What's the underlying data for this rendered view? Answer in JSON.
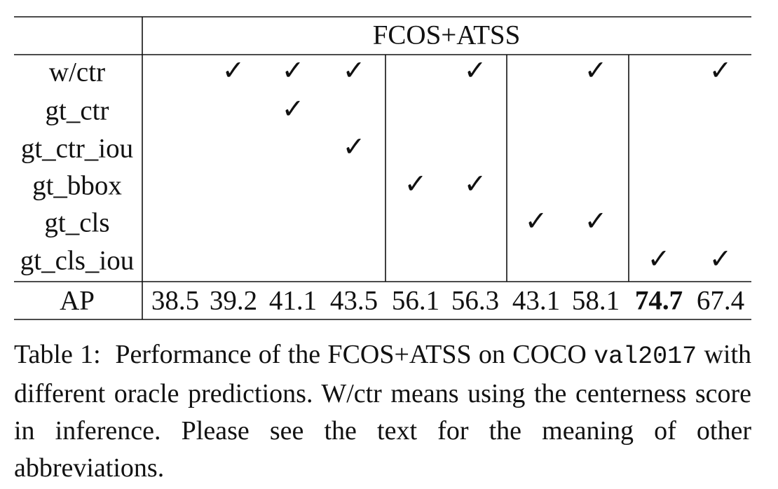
{
  "table": {
    "header": "FCOS+ATSS",
    "rows": [
      {
        "label": "w/ctr",
        "cells": [
          null,
          "✓",
          "✓",
          "✓",
          null,
          "✓",
          null,
          "✓",
          null,
          "✓"
        ]
      },
      {
        "label": "gt_ctr",
        "cells": [
          null,
          null,
          "✓",
          null,
          null,
          null,
          null,
          null,
          null,
          null
        ]
      },
      {
        "label": "gt_ctr_iou",
        "cells": [
          null,
          null,
          null,
          "✓",
          null,
          null,
          null,
          null,
          null,
          null
        ]
      },
      {
        "label": "gt_bbox",
        "cells": [
          null,
          null,
          null,
          null,
          "✓",
          "✓",
          null,
          null,
          null,
          null
        ]
      },
      {
        "label": "gt_cls",
        "cells": [
          null,
          null,
          null,
          null,
          null,
          null,
          "✓",
          "✓",
          null,
          null
        ]
      },
      {
        "label": "gt_cls_iou",
        "cells": [
          null,
          null,
          null,
          null,
          null,
          null,
          null,
          null,
          "✓",
          "✓"
        ]
      }
    ],
    "ap": {
      "label": "AP",
      "values": [
        38.5,
        39.2,
        41.1,
        43.5,
        56.1,
        56.3,
        43.1,
        58.1,
        74.7,
        67.4
      ],
      "bold": 8
    }
  },
  "caption": {
    "label": "Table 1:",
    "text_before": "Performance of the FCOS+ATSS on COCO",
    "code": "val2017",
    "text_after": "with different oracle predictions. W/ctr means using the centerness score in inference. Please see the text for the meaning of other abbreviations."
  }
}
